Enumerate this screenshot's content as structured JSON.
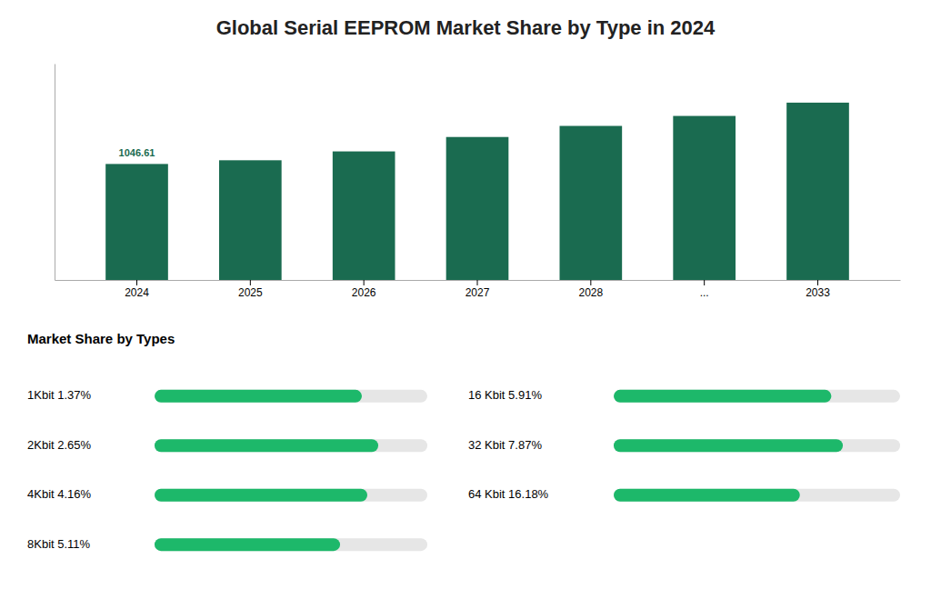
{
  "chart_data": [
    {
      "type": "bar",
      "title": "Global Serial EEPROM Market Share by Type in 2024",
      "categories": [
        "2024",
        "2025",
        "2026",
        "2027",
        "2028",
        "...",
        "2033"
      ],
      "values": [
        1046.61,
        1080,
        1160,
        1290,
        1390,
        1480,
        1600
      ],
      "color": "#1a6b50",
      "ylim": [
        0,
        1952
      ],
      "tick_labels": "x",
      "annotations": [
        {
          "text": "1046.61",
          "x": "2024",
          "y": 1046.61
        }
      ]
    },
    {
      "type": "bar",
      "orientation": "horizontal",
      "title": "Market Share by Types",
      "categories": [
        "1Kbit 1.37%",
        "2Kbit 2.65%",
        "4Kbit 4.16%",
        "8Kbit 5.11%",
        "16 Kbit 5.91%",
        "32 Kbit 7.87%",
        "64 Kbit 16.18%"
      ],
      "values": [
        0.76,
        0.82,
        0.78,
        0.68,
        0.76,
        0.8,
        0.65
      ],
      "color": "#1db86a",
      "xlim": [
        0,
        1
      ],
      "tick_labels": false
    }
  ]
}
